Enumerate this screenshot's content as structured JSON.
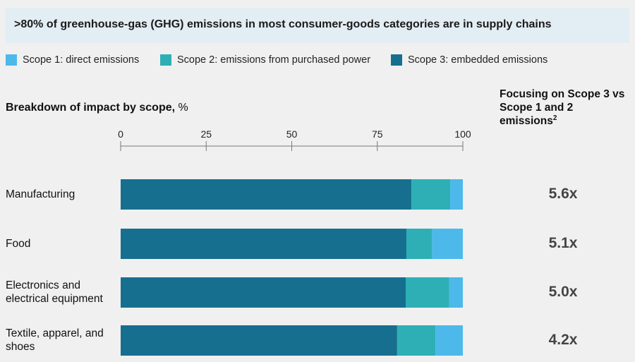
{
  "banner": {
    "title": ">80% of greenhouse-gas (GHG) emissions in most consumer-goods categories are in supply chains"
  },
  "legend": [
    {
      "label": "Scope 1: direct emissions",
      "color": "#4db8ea"
    },
    {
      "label": "Scope 2: emissions from purchased power",
      "color": "#2eafb5"
    },
    {
      "label": "Scope 3: embedded emissions",
      "color": "#176f8f"
    }
  ],
  "subtitle": {
    "main": "Breakdown of impact by scope,",
    "unit": " %"
  },
  "right_header": {
    "text": "Focusing on Scope 3 vs Scope 1 and 2 emissions",
    "sup": "2"
  },
  "chart_data": {
    "type": "bar",
    "orientation": "horizontal",
    "stacked": true,
    "xlim": [
      0,
      100
    ],
    "ticks": [
      "0",
      "25",
      "50",
      "75",
      "100"
    ],
    "categories": [
      "Manufacturing",
      "Food",
      "Electronics and electrical equipment",
      "Textile, apparel, and shoes"
    ],
    "series": [
      {
        "name": "Scope 3: embedded emissions",
        "color": "#176f8f",
        "values": [
          85,
          83.5,
          83.3,
          80.8
        ]
      },
      {
        "name": "Scope 2: emissions from purchased power",
        "color": "#2eafb5",
        "values": [
          11.3,
          7.5,
          12.7,
          11.2
        ]
      },
      {
        "name": "Scope 1: direct emissions",
        "color": "#4db8ea",
        "values": [
          3.7,
          9,
          4,
          8
        ]
      }
    ],
    "ratios": [
      "5.6x",
      "5.1x",
      "5.0x",
      "4.2x"
    ]
  }
}
